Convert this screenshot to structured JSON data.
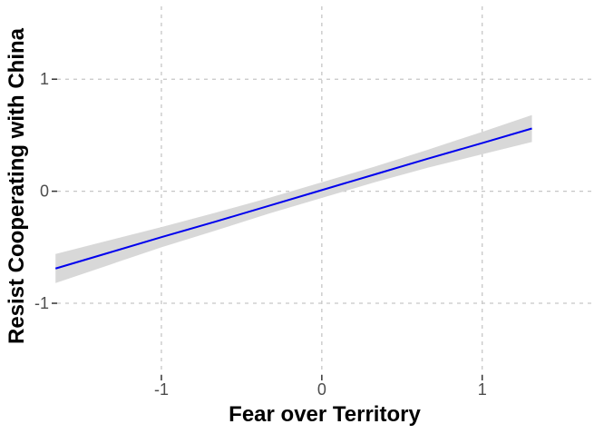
{
  "chart_data": {
    "type": "line",
    "title": "",
    "xlabel": "Fear over Territory",
    "ylabel": "Resist Cooperating with China",
    "x": [
      -1.66,
      -1.33,
      -1.0,
      -0.66,
      -0.33,
      0.0,
      0.33,
      0.66,
      1.0,
      1.31
    ],
    "series": [
      {
        "name": "fitted-line",
        "values": [
          -0.69,
          -0.55,
          -0.41,
          -0.27,
          -0.13,
          0.01,
          0.15,
          0.29,
          0.43,
          0.56
        ]
      }
    ],
    "confidence_band": {
      "lower": [
        -0.82,
        -0.66,
        -0.5,
        -0.35,
        -0.2,
        -0.06,
        0.08,
        0.21,
        0.33,
        0.44
      ],
      "upper": [
        -0.56,
        -0.44,
        -0.32,
        -0.19,
        -0.06,
        0.08,
        0.22,
        0.37,
        0.53,
        0.68
      ]
    },
    "axes": {
      "xticks": [
        -1,
        0,
        1
      ],
      "xtick_labels": [
        "-1",
        "0",
        "1"
      ],
      "yticks": [
        -1,
        0,
        1
      ],
      "ytick_labels": [
        "-1",
        "0",
        "1"
      ],
      "xlim": [
        -1.65,
        1.68
      ],
      "ylim": [
        -1.64,
        1.65
      ],
      "grid": "major-dashed",
      "legend": "none"
    },
    "colors": {
      "line": "#0000EE",
      "band": "#D8D8D8",
      "gridline": "#C6C6C6",
      "tick_mark": "#333333",
      "tick_label": "#4D4D4D",
      "axis_title": "#000000",
      "background": "#FFFFFF"
    }
  }
}
